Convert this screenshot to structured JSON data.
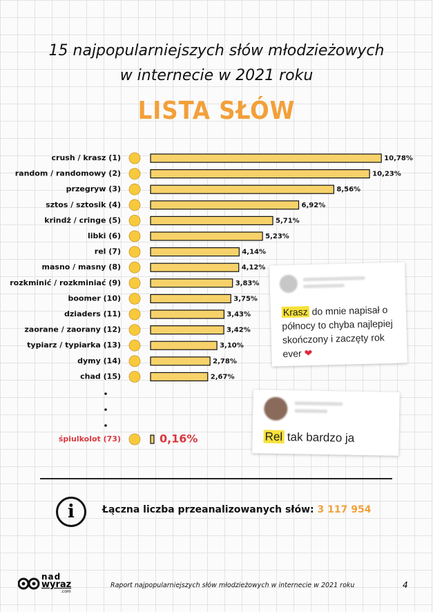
{
  "chart_data": {
    "type": "hbar",
    "title": "15 najpopularniejszych słów młodzieżowych w internecie w 2021 roku",
    "subtitle": "LISTA SŁÓW",
    "categories": [
      "crush / krasz (1)",
      "random / randomowy (2)",
      "przegryw (3)",
      "sztos / sztosik (4)",
      "krindż / cringe (5)",
      "libki (6)",
      "rel (7)",
      "masno / masny (8)",
      "rozkminić / rozkminiać (9)",
      "boomer (10)",
      "dziaders (11)",
      "zaorane / zaorany (12)",
      "typiarz / typiarka (13)",
      "dymy (14)",
      "chad (15)",
      "śpiulkolot (73)"
    ],
    "values": [
      10.78,
      10.23,
      8.56,
      6.92,
      5.71,
      5.23,
      4.14,
      4.12,
      3.83,
      3.75,
      3.43,
      3.42,
      3.1,
      2.78,
      2.67,
      0.16
    ],
    "value_labels": [
      "10,78%",
      "10,23%",
      "8,56%",
      "6,92%",
      "5,71%",
      "5,23%",
      "4,14%",
      "4,12%",
      "3,83%",
      "3,75%",
      "3,43%",
      "3,42%",
      "3,10%",
      "2,78%",
      "2,67%",
      "0,16%"
    ],
    "color": "#f7d26a"
  },
  "posts": [
    {
      "highlight": "Krasz",
      "text": "do mnie napisał o północy to chyba najlepiej skończony i zaczęty rok ever"
    },
    {
      "highlight": "Rel",
      "text": "tak bardzo ja"
    }
  ],
  "summary": {
    "label": "Łączna liczba przeanalizowanych słów:",
    "value": "3 117 954"
  },
  "footer": {
    "text": "Raport najpopularniejszych słów młodzieżowych w internecie w 2021 roku",
    "page": "4",
    "logo": [
      "nad",
      "wyraz",
      ".com"
    ]
  }
}
